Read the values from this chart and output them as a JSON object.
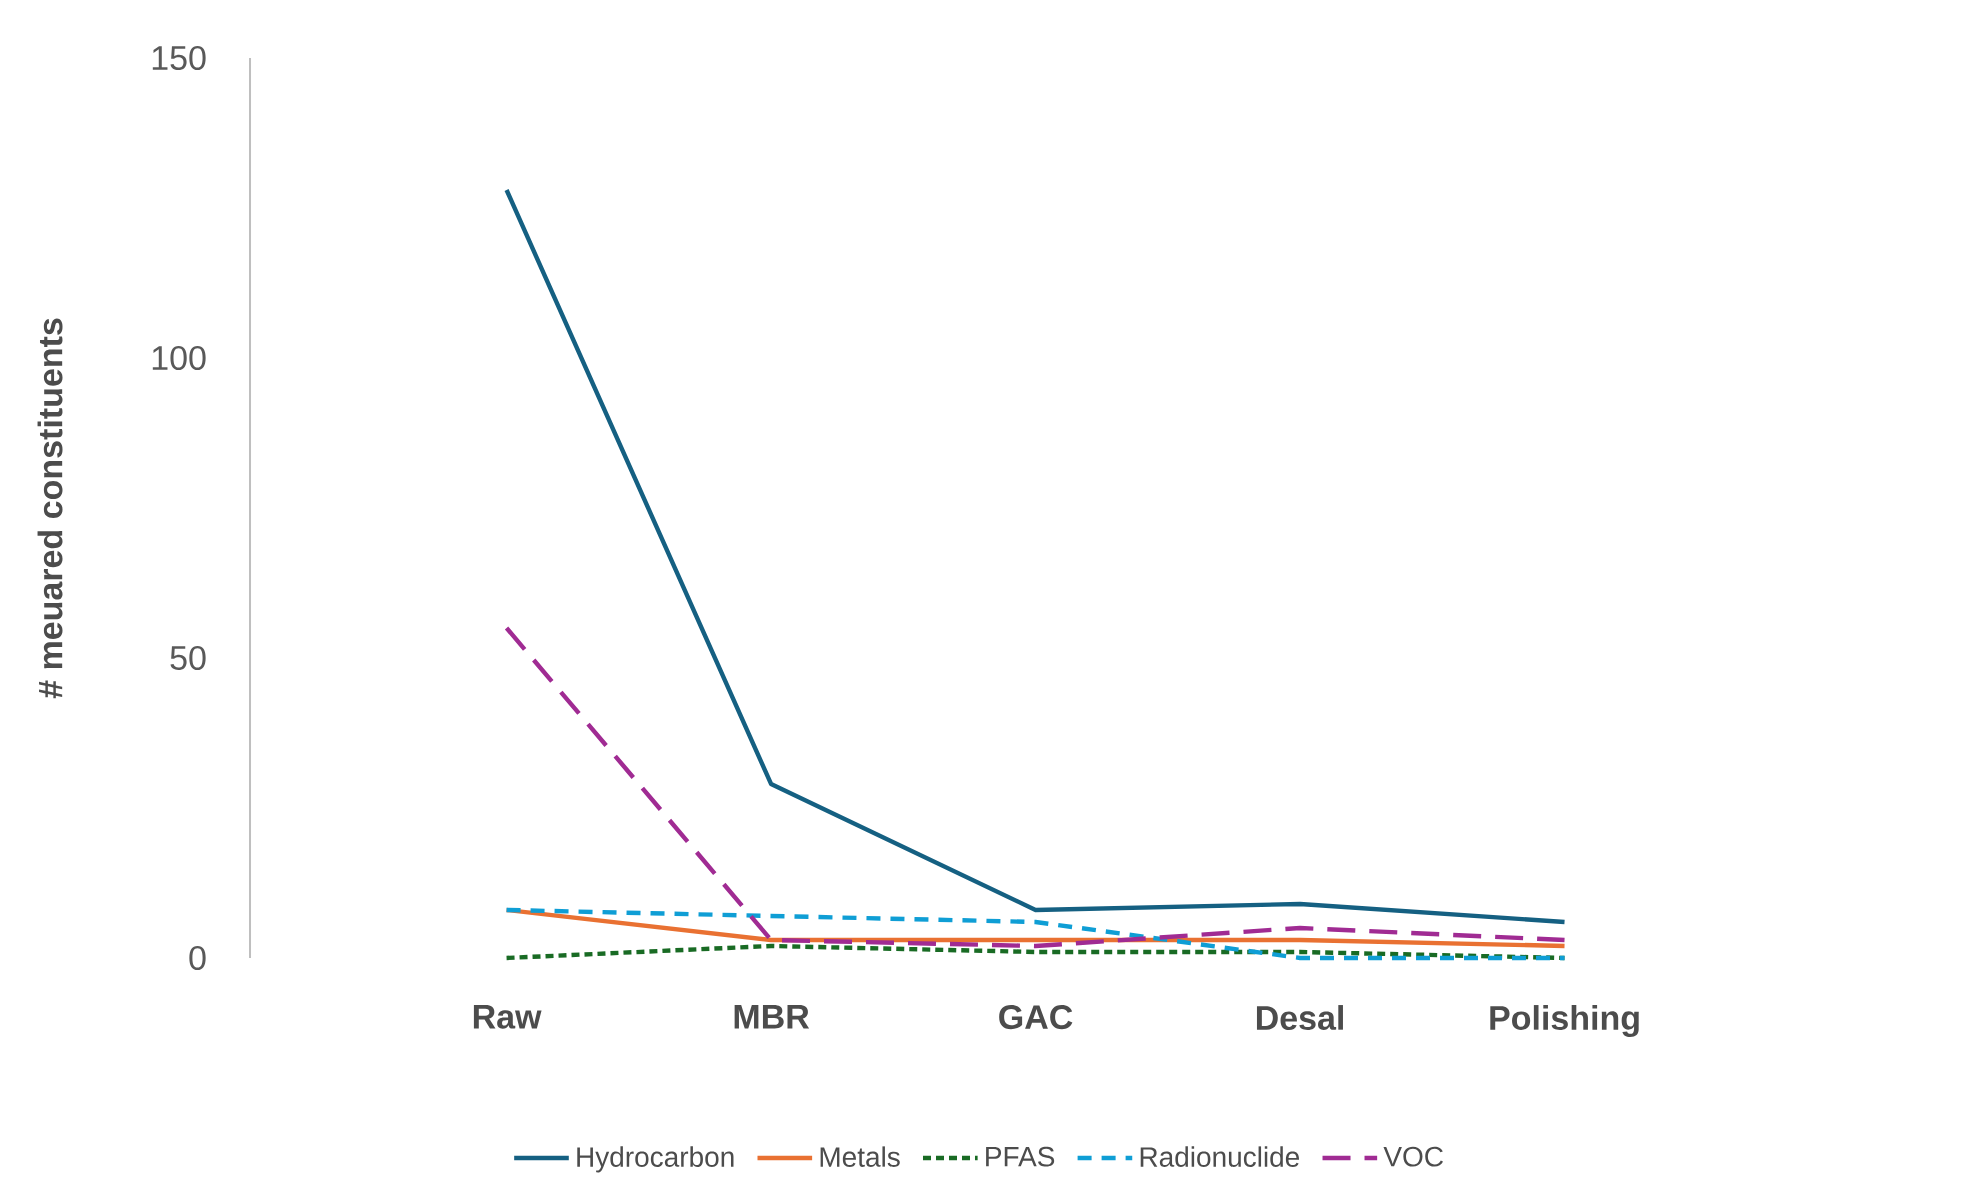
{
  "chart_data": {
    "type": "line",
    "ylabel": "# meuared constituents",
    "categories": [
      "Raw",
      "MBR",
      "GAC",
      "Desal",
      "Polishing"
    ],
    "series": [
      {
        "name": "Hydrocarbon",
        "color": "#156082",
        "values": [
          128,
          29,
          8,
          9,
          6
        ],
        "line_style": "solid"
      },
      {
        "name": "Metals",
        "color": "#e97132",
        "values": [
          8,
          3,
          3,
          3,
          2
        ],
        "line_style": "solid"
      },
      {
        "name": "PFAS",
        "color": "#196b24",
        "values": [
          0,
          2,
          1,
          1,
          0
        ],
        "line_style": "dotted"
      },
      {
        "name": "Radionuclide",
        "color": "#0f9ed5",
        "values": [
          8,
          7,
          6,
          0,
          0
        ],
        "line_style": "dashed"
      },
      {
        "name": "VOC",
        "color": "#a02b93",
        "values": [
          55,
          3,
          2,
          5,
          3
        ],
        "line_style": "dashed"
      }
    ],
    "ylim": [
      0,
      150
    ],
    "yticks": [
      0,
      50,
      100,
      150
    ],
    "grid": false,
    "legend": "bottom",
    "marker": "none"
  }
}
